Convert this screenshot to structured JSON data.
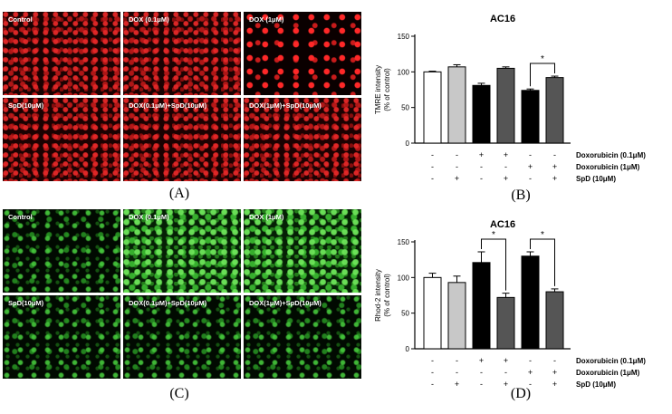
{
  "panel_labels": {
    "A": "(A)",
    "B": "(B)",
    "C": "(C)",
    "D": "(D)"
  },
  "panel_A": {
    "image_labels": [
      "Control",
      "DOX (0.1μM)",
      "DOX (1μM)",
      "SpD(10μM)",
      "DOX(0.1μM)+SpD(10μM)",
      "DOX(1μM)+SpD(10μM)"
    ],
    "stain_color": "#d42020"
  },
  "panel_C": {
    "image_labels": [
      "Control",
      "DOX (0.1μM)",
      "DOX (1μM)",
      "SpD(10μM)",
      "DOX(0.1μM)+SpD(10μM)",
      "DOX(1μM)+SpD(10μM)"
    ],
    "stain_color": "#3cc83c"
  },
  "chart_data": [
    {
      "type": "bar",
      "title": "AC16",
      "ylabel_line1": "TMRE  intensity",
      "ylabel_line2": "(% of control)",
      "ylim": [
        0,
        150
      ],
      "yticks": [
        "0",
        "50",
        "100",
        "150"
      ],
      "values": [
        100,
        107,
        81,
        105,
        74,
        92
      ],
      "errors": [
        1,
        3,
        3,
        2,
        2,
        2
      ],
      "bar_colors": [
        "#ffffff",
        "#c8c8c8",
        "#000000",
        "#555555",
        "#000000",
        "#555555"
      ],
      "significance": [
        {
          "from": 4,
          "to": 5,
          "label": "*"
        }
      ],
      "treatment_rows": [
        {
          "label": "Doxorubicin (0.1μM)",
          "signs": [
            "-",
            "-",
            "+",
            "+",
            "-",
            "-"
          ]
        },
        {
          "label": "Doxorubicin (1μM)",
          "signs": [
            "-",
            "-",
            "-",
            "-",
            "+",
            "+"
          ]
        },
        {
          "label": "SpD (10μM)",
          "signs": [
            "-",
            "+",
            "-",
            "+",
            "-",
            "+"
          ]
        }
      ]
    },
    {
      "type": "bar",
      "title": "AC16",
      "ylabel_line1": "Rhod-2 intensity",
      "ylabel_line2": "(% of control)",
      "ylim": [
        0,
        150
      ],
      "yticks": [
        "0",
        "50",
        "100",
        "150"
      ],
      "values": [
        100,
        93,
        121,
        72,
        130,
        80
      ],
      "errors": [
        6,
        9,
        15,
        6,
        6,
        4
      ],
      "bar_colors": [
        "#ffffff",
        "#c8c8c8",
        "#000000",
        "#555555",
        "#000000",
        "#555555"
      ],
      "significance": [
        {
          "from": 2,
          "to": 3,
          "label": "*"
        },
        {
          "from": 4,
          "to": 5,
          "label": "*"
        }
      ],
      "treatment_rows": [
        {
          "label": "Doxorubicin (0.1μM)",
          "signs": [
            "-",
            "-",
            "+",
            "+",
            "-",
            "-"
          ]
        },
        {
          "label": "Doxorubicin (1μM)",
          "signs": [
            "-",
            "-",
            "-",
            "-",
            "+",
            "+"
          ]
        },
        {
          "label": "SpD (10μM)",
          "signs": [
            "-",
            "+",
            "-",
            "+",
            "-",
            "+"
          ]
        }
      ]
    }
  ]
}
